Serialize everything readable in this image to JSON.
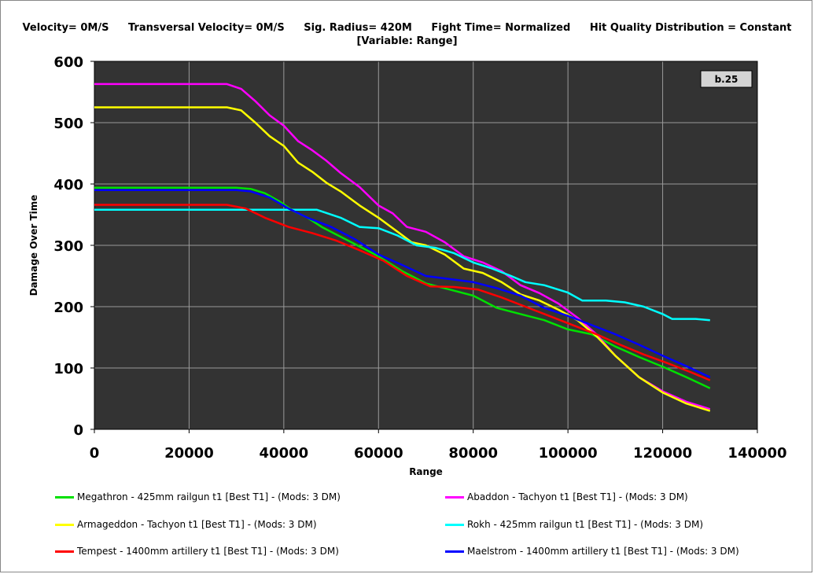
{
  "header": {
    "items": [
      "Velocity= 0M/S",
      "Transversal Velocity= 0M/S",
      "Sig. Radius= 420M",
      "Fight Time= Normalized",
      "Hit Quality Distribution = Constant"
    ],
    "subtitle": "[Variable: Range]"
  },
  "badge": "b.25",
  "chart_data": {
    "type": "line",
    "xlabel": "Range",
    "ylabel": "Damage Over Time",
    "xlim": [
      0,
      140000
    ],
    "ylim": [
      0,
      600
    ],
    "xticks": [
      "0",
      "20000",
      "40000",
      "60000",
      "80000",
      "100000",
      "120000",
      "140000"
    ],
    "yticks": [
      "0",
      "100",
      "200",
      "300",
      "400",
      "500",
      "600"
    ],
    "grid": true,
    "background": "#333333",
    "series": [
      {
        "name": "Megathron - 425mm railgun t1 [Best T1] - (Mods: 3 DM)",
        "color": "#00e000",
        "x": [
          0,
          30000,
          33000,
          36000,
          39000,
          42000,
          45000,
          48000,
          51000,
          55000,
          60000,
          65000,
          70000,
          75000,
          80000,
          85000,
          90000,
          95000,
          100000,
          105000,
          110000,
          115000,
          120000,
          125000,
          130000
        ],
        "y": [
          394,
          394,
          392,
          385,
          372,
          356,
          345,
          330,
          318,
          302,
          282,
          258,
          238,
          228,
          218,
          198,
          188,
          178,
          163,
          155,
          135,
          118,
          102,
          85,
          67
        ]
      },
      {
        "name": "Abaddon - Tachyon t1 [Best T1] - (Mods: 3 DM)",
        "color": "#ff00ff",
        "x": [
          0,
          28000,
          31000,
          34000,
          37000,
          40000,
          43000,
          46000,
          49000,
          52000,
          56000,
          60000,
          63000,
          66000,
          70000,
          74000,
          78000,
          82000,
          86000,
          90000,
          94000,
          98000,
          102000,
          106000,
          110000,
          115000,
          120000,
          125000,
          130000
        ],
        "y": [
          563,
          563,
          555,
          535,
          512,
          495,
          470,
          455,
          438,
          418,
          395,
          365,
          352,
          330,
          322,
          305,
          282,
          272,
          258,
          235,
          222,
          205,
          182,
          155,
          120,
          85,
          62,
          45,
          33
        ]
      },
      {
        "name": "Armageddon - Tachyon t1 [Best T1] - (Mods: 3 DM)",
        "color": "#ffff00",
        "x": [
          0,
          28000,
          31000,
          34000,
          37000,
          40000,
          43000,
          46000,
          49000,
          52000,
          56000,
          60000,
          63000,
          67000,
          70000,
          74000,
          78000,
          82000,
          86000,
          90000,
          94000,
          98000,
          102000,
          106000,
          110000,
          115000,
          120000,
          125000,
          130000
        ],
        "y": [
          525,
          525,
          520,
          500,
          478,
          462,
          435,
          420,
          402,
          388,
          365,
          345,
          328,
          305,
          300,
          285,
          262,
          255,
          240,
          220,
          210,
          195,
          178,
          152,
          120,
          85,
          60,
          42,
          30
        ]
      },
      {
        "name": "Rokh - 425mm railgun t1 [Best T1] - (Mods: 3 DM)",
        "color": "#00ffff",
        "x": [
          0,
          32000,
          42000,
          47000,
          52000,
          56000,
          60000,
          64000,
          68000,
          72000,
          76000,
          80000,
          84000,
          88000,
          91000,
          95000,
          100000,
          103000,
          108000,
          112000,
          116000,
          120000,
          122000,
          127000,
          130000
        ],
        "y": [
          358,
          358,
          358,
          358,
          345,
          330,
          328,
          316,
          300,
          296,
          287,
          272,
          262,
          250,
          240,
          235,
          223,
          210,
          210,
          207,
          200,
          188,
          180,
          180,
          178
        ]
      },
      {
        "name": "Tempest - 1400mm artillery t1 [Best T1] - (Mods: 3 DM)",
        "color": "#ff0000",
        "x": [
          0,
          28000,
          32000,
          36000,
          41000,
          46000,
          51000,
          56000,
          61000,
          66000,
          71000,
          76000,
          81000,
          86000,
          91000,
          96000,
          101000,
          106000,
          111000,
          116000,
          121000,
          126000,
          130000
        ],
        "y": [
          366,
          366,
          360,
          345,
          330,
          320,
          308,
          292,
          275,
          250,
          233,
          232,
          228,
          215,
          200,
          185,
          170,
          155,
          138,
          122,
          108,
          93,
          80
        ]
      },
      {
        "name": "Maelstrom - 1400mm artillery t1 [Best T1] - (Mods: 3 DM)",
        "color": "#0000ff",
        "x": [
          0,
          30000,
          33000,
          37000,
          41000,
          45000,
          50000,
          55000,
          60000,
          65000,
          70000,
          75000,
          80000,
          85000,
          90000,
          95000,
          100000,
          105000,
          110000,
          115000,
          120000,
          125000,
          130000
        ],
        "y": [
          390,
          390,
          388,
          378,
          360,
          345,
          330,
          310,
          285,
          268,
          250,
          245,
          240,
          230,
          218,
          198,
          185,
          170,
          155,
          138,
          120,
          103,
          85
        ]
      }
    ]
  }
}
